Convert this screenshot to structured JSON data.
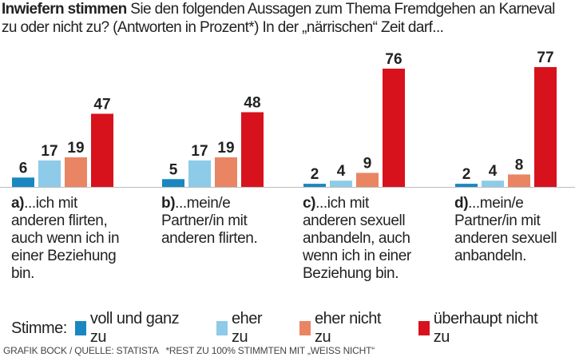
{
  "title": {
    "bold": "Inwiefern stimmen",
    "rest": " Sie den folgenden Aussagen zum Thema Fremdgehen an Karneval zu oder nicht zu? (Antworten in Prozent*) In der „närrischen“ Zeit darf..."
  },
  "chart_data": {
    "type": "bar",
    "categories": [
      {
        "letter": "a)",
        "text": "...ich mit anderen flirten, auch wenn ich in einer Beziehung bin."
      },
      {
        "letter": "b)",
        "text": "...mein/e Partner/in mit anderen flirten."
      },
      {
        "letter": "c)",
        "text": "...ich mit anderen sexuell anbandeln, auch wenn ich in einer Beziehung bin."
      },
      {
        "letter": "d)",
        "text": "...mein/e Partner/in mit anderen sexuell anbandeln."
      }
    ],
    "series": [
      {
        "name": "voll und ganz zu",
        "color": "#1a87c0",
        "values": [
          6,
          5,
          2,
          2
        ]
      },
      {
        "name": "eher zu",
        "color": "#8dcbe8",
        "values": [
          17,
          17,
          4,
          4
        ]
      },
      {
        "name": "eher nicht zu",
        "color": "#e98563",
        "values": [
          19,
          19,
          9,
          8
        ]
      },
      {
        "name": "überhaupt nicht zu",
        "color": "#d7121c",
        "values": [
          47,
          48,
          76,
          77
        ]
      }
    ],
    "ylim": [
      0,
      80
    ],
    "data_labels": true
  },
  "legend": {
    "prefix": "Stimme:"
  },
  "footer": "GRAFIK BOCK / QUELLE: STATISTA   *REST ZU 100% STIMMTEN MIT „WEISS NICHT“"
}
